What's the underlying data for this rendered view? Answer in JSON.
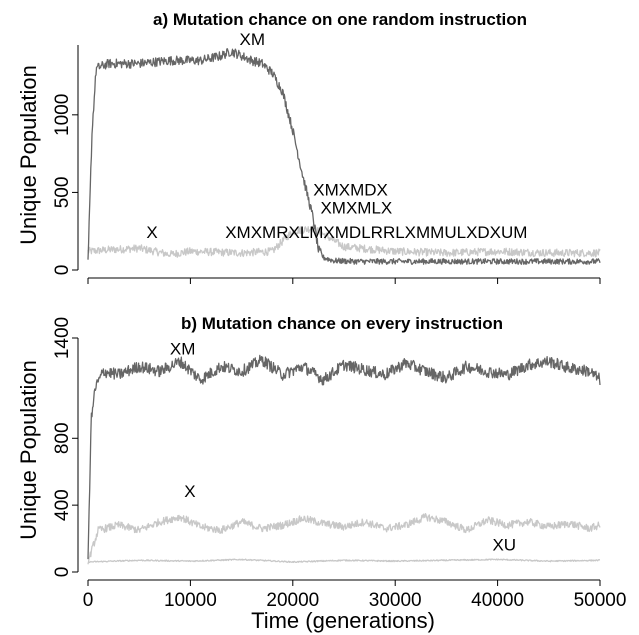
{
  "colors": {
    "dark_series": "#666666",
    "light_series": "#c8c8c8",
    "text": "#000000"
  },
  "chart_data": [
    {
      "type": "line",
      "title": "a) Mutation chance on one random instruction",
      "ylabel": "Unique Population",
      "xlabel": "",
      "xlim": [
        0,
        50000
      ],
      "ylim": [
        0,
        1450
      ],
      "y_ticks": [
        0,
        500,
        1000
      ],
      "x_tick_labels": false,
      "series": [
        {
          "color": "#666666",
          "x": [
            0,
            400,
            800,
            2000,
            5000,
            8000,
            11000,
            13000,
            14000,
            16000,
            17000,
            18000,
            19000,
            20000,
            21000,
            22000,
            22500,
            23000,
            24000,
            26000,
            30000,
            35000,
            40000,
            45000,
            50000
          ],
          "y": [
            50,
            900,
            1300,
            1330,
            1330,
            1350,
            1350,
            1380,
            1410,
            1350,
            1330,
            1270,
            1150,
            900,
            600,
            330,
            130,
            80,
            60,
            55,
            55,
            55,
            55,
            55,
            55
          ]
        },
        {
          "color": "#c8c8c8",
          "x": [
            0,
            2000,
            5000,
            8000,
            10000,
            15000,
            18000,
            20000,
            22000,
            25000,
            30000,
            35000,
            40000,
            45000,
            50000
          ],
          "y": [
            120,
            130,
            140,
            100,
            120,
            110,
            120,
            250,
            270,
            150,
            120,
            110,
            120,
            110,
            110
          ]
        }
      ],
      "annotations": [
        {
          "text": "XM",
          "x": 14800,
          "y": 1450
        },
        {
          "text": "XMXMDX",
          "x": 22000,
          "y": 480
        },
        {
          "text": "XMXMLX",
          "x": 22700,
          "y": 365
        },
        {
          "text": "X",
          "x": 5700,
          "y": 205
        },
        {
          "text": "XMXMRXLMXMDLRRLXMMULXDXUM",
          "x": 13400,
          "y": 205
        }
      ]
    },
    {
      "type": "line",
      "title": "b) Mutation chance on every instruction",
      "ylabel": "Unique Population",
      "xlabel": "Time (generations)",
      "xlim": [
        0,
        50000
      ],
      "ylim": [
        0,
        1400
      ],
      "y_ticks": [
        0,
        400,
        800,
        1400
      ],
      "x_ticks": [
        0,
        10000,
        20000,
        30000,
        40000,
        50000
      ],
      "series": [
        {
          "color": "#666666",
          "x": [
            0,
            300,
            700,
            1500,
            3000,
            5000,
            7000,
            9000,
            11000,
            13000,
            15000,
            17000,
            19000,
            21000,
            23000,
            25000,
            27000,
            29000,
            31000,
            33000,
            35000,
            37000,
            39000,
            41000,
            43000,
            45000,
            47000,
            49000,
            50000
          ],
          "y": [
            60,
            900,
            1100,
            1200,
            1180,
            1230,
            1200,
            1260,
            1150,
            1230,
            1200,
            1270,
            1180,
            1230,
            1150,
            1240,
            1210,
            1180,
            1250,
            1200,
            1160,
            1230,
            1200,
            1180,
            1240,
            1260,
            1220,
            1200,
            1150
          ]
        },
        {
          "color": "#c8c8c8",
          "x": [
            0,
            1000,
            3000,
            5000,
            7000,
            9000,
            11000,
            13000,
            15000,
            17000,
            19000,
            21000,
            23000,
            25000,
            27000,
            29000,
            31000,
            33000,
            35000,
            37000,
            39000,
            41000,
            43000,
            45000,
            47000,
            49000,
            50000
          ],
          "y": [
            60,
            250,
            280,
            250,
            300,
            330,
            270,
            250,
            300,
            260,
            280,
            320,
            290,
            270,
            300,
            260,
            280,
            330,
            300,
            250,
            310,
            280,
            300,
            270,
            290,
            260,
            280
          ]
        },
        {
          "color": "#c8c8c8",
          "x": [
            0,
            5000,
            10000,
            15000,
            20000,
            25000,
            30000,
            35000,
            40000,
            45000,
            50000
          ],
          "y": [
            60,
            70,
            65,
            75,
            60,
            70,
            65,
            70,
            75,
            65,
            70
          ]
        }
      ],
      "annotations": [
        {
          "text": "XM",
          "x": 8000,
          "y": 1300
        },
        {
          "text": "X",
          "x": 9400,
          "y": 450
        },
        {
          "text": "XU",
          "x": 39500,
          "y": 130
        }
      ]
    }
  ]
}
